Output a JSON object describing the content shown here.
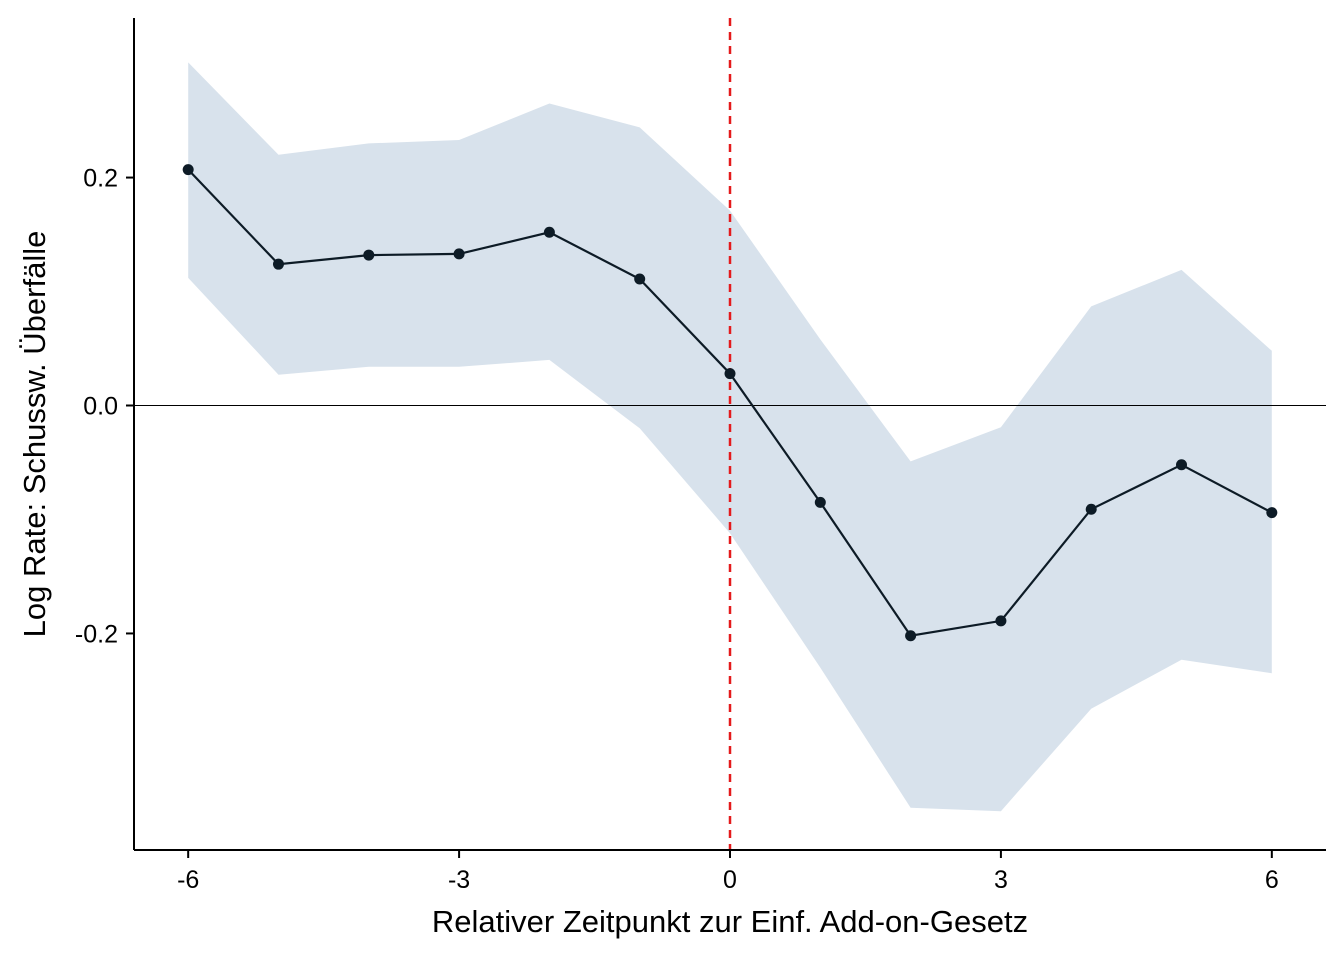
{
  "chart_data": {
    "type": "line",
    "title": "",
    "xlabel": "Relativer Zeitpunkt zur Einf. Add-on-Gesetz",
    "ylabel": "Log Rate: Schussw. Überfälle",
    "x": [
      -6,
      -5,
      -4,
      -3,
      -2,
      -1,
      0,
      1,
      2,
      3,
      4,
      5,
      6
    ],
    "series": [
      {
        "values": [
          0.207,
          0.124,
          0.132,
          0.133,
          0.152,
          0.111,
          0.028,
          -0.085,
          -0.202,
          -0.189,
          -0.091,
          -0.052,
          -0.094
        ],
        "ci_lower": [
          0.112,
          0.027,
          0.034,
          0.034,
          0.04,
          -0.02,
          -0.112,
          -0.23,
          -0.353,
          -0.356,
          -0.266,
          -0.223,
          -0.235
        ],
        "ci_upper": [
          0.301,
          0.22,
          0.23,
          0.233,
          0.265,
          0.244,
          0.171,
          0.058,
          -0.049,
          -0.019,
          0.087,
          0.119,
          0.048
        ]
      }
    ],
    "xticks": [
      -6,
      -3,
      0,
      3,
      6
    ],
    "xtick_labels": [
      "-6",
      "-3",
      "0",
      "3",
      "6"
    ],
    "yticks": [
      -0.2,
      0.0,
      0.2
    ],
    "ytick_labels": [
      "-0.2",
      "0.0",
      "0.2"
    ],
    "xlim": [
      -6.6,
      6.6
    ],
    "ylim": [
      -0.39,
      0.34
    ],
    "hline": 0,
    "vline": 0,
    "grid": false,
    "colors": {
      "line": "#0d1b26",
      "points": "#0d1b26",
      "ci_band": "#d8e2ec",
      "vline": "#e41a1c",
      "hline": "#000000",
      "axis": "#000000"
    }
  }
}
